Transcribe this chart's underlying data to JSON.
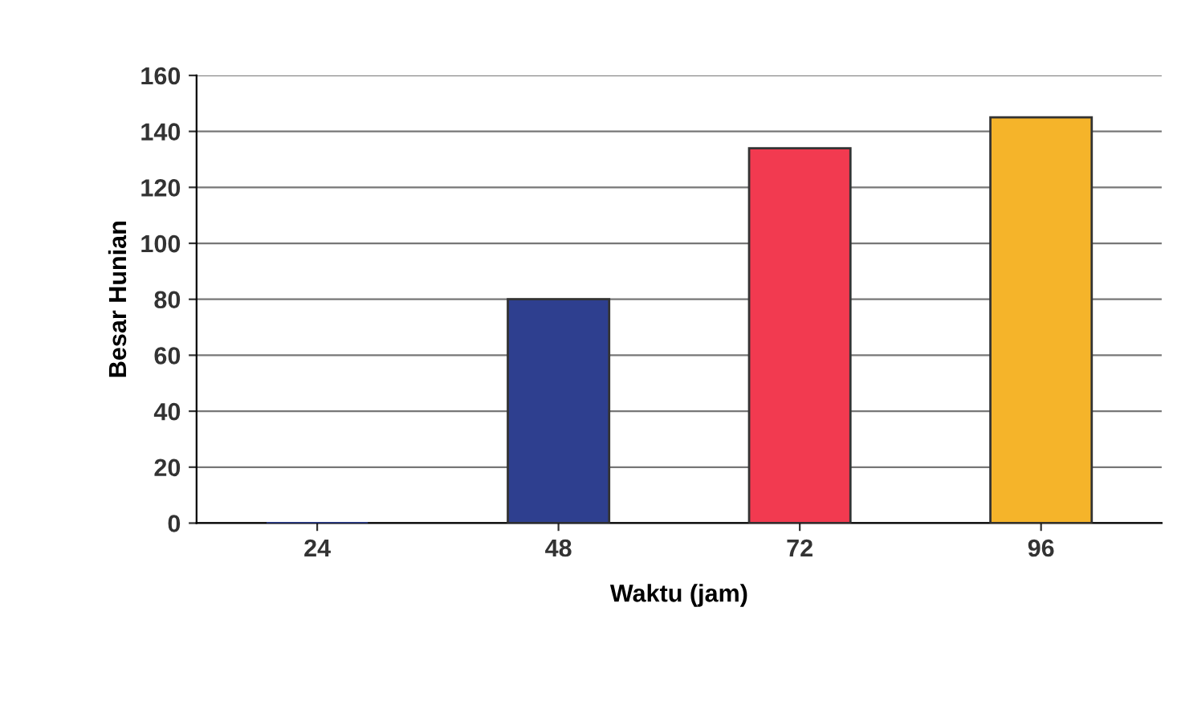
{
  "chart_data": {
    "type": "bar",
    "xlabel": "Waktu (jam)",
    "ylabel": "Besar Hunian",
    "categories": [
      "24",
      "48",
      "72",
      "96"
    ],
    "values": [
      0,
      80,
      134,
      145
    ],
    "colors": [
      "#2e3f8f",
      "#2e3f8f",
      "#f23a50",
      "#f5b42a"
    ],
    "ylim": [
      0,
      160
    ],
    "yticks": [
      0,
      20,
      40,
      60,
      80,
      100,
      120,
      140,
      160
    ],
    "grid": "y",
    "legend": false
  }
}
